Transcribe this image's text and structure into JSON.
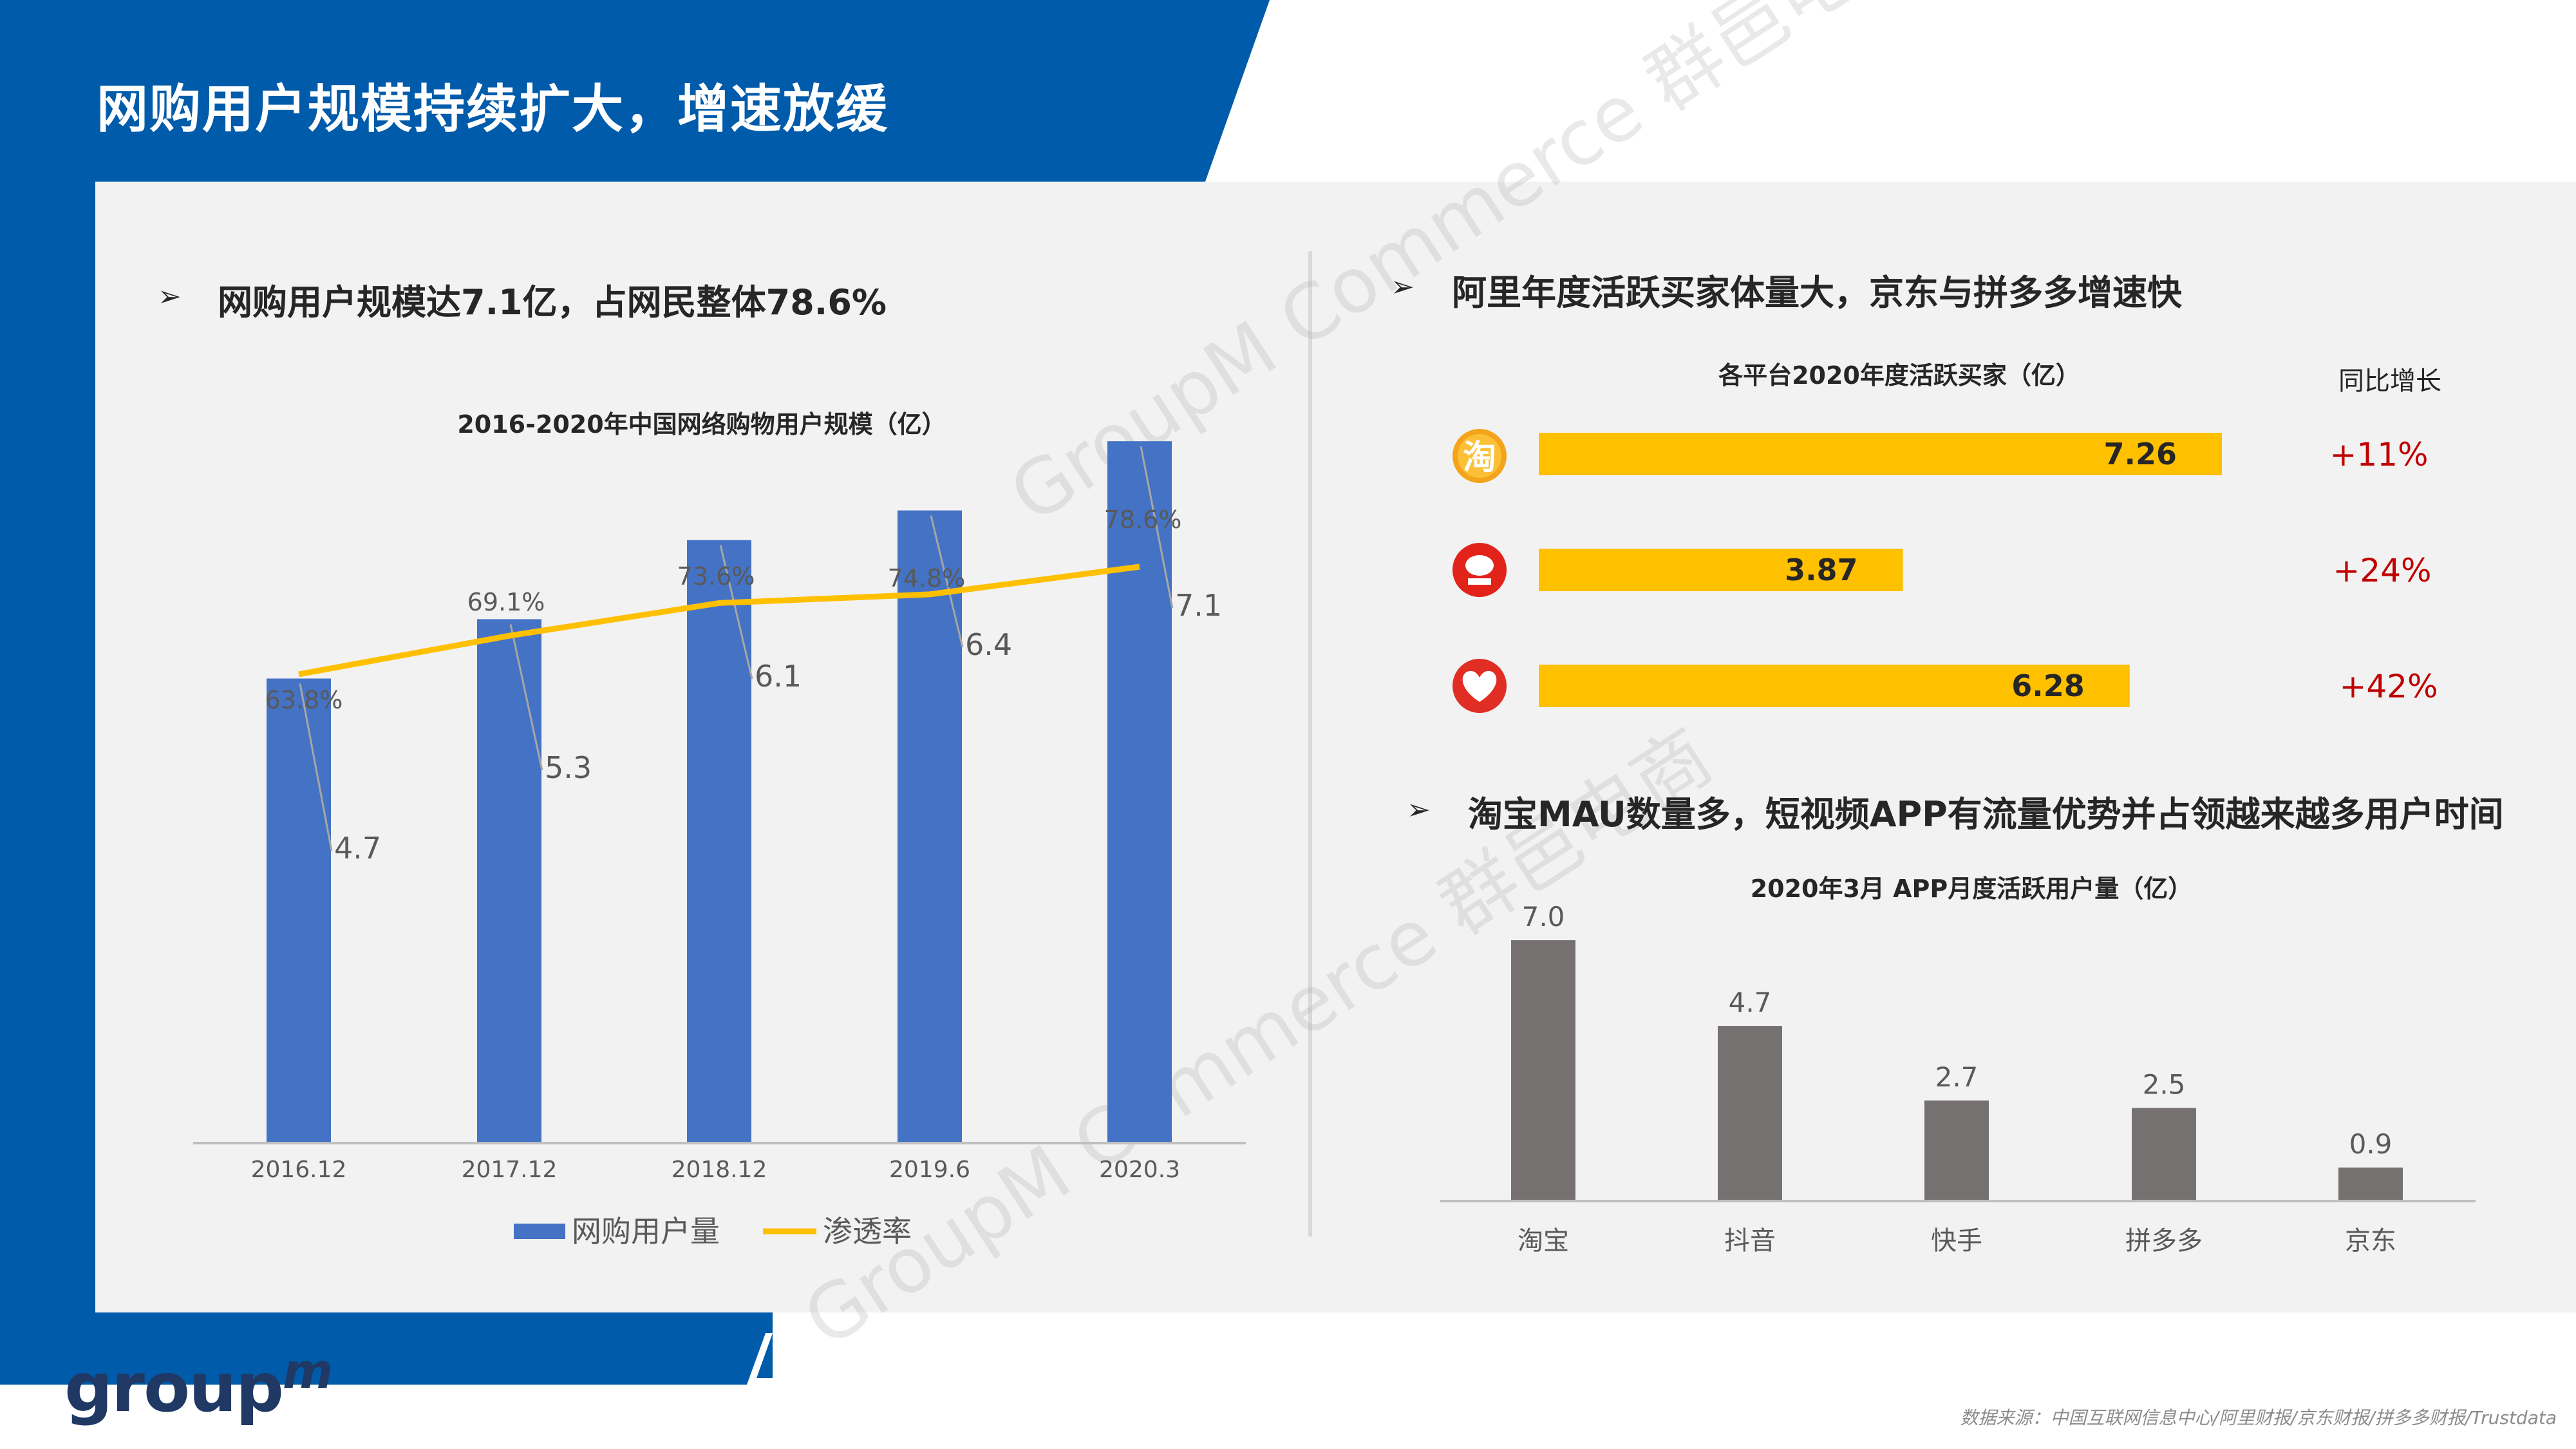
{
  "page": {
    "title": "网购用户规模持续扩大，增速放缓",
    "source": "数据来源：中国互联网信息中心/阿里财报/京东财报/拼多多财报/Trustdata",
    "logo": {
      "text": "group",
      "sup": "m"
    },
    "watermarks": [
      "GroupM Commerce 群邑电商",
      "GroupM Commerce 群邑电商"
    ],
    "colors": {
      "blue": "#005baa",
      "panel": "#f2f2f2",
      "bar_blue": "#4472c4",
      "line_yellow": "#ffc000",
      "bar_gray": "#767171",
      "growth_red": "#c00000"
    }
  },
  "left": {
    "heading": "网购用户规模达7.1亿，占网民整体78.6%",
    "bullet": "➢"
  },
  "right_top": {
    "heading": "阿里年度活跃买家体量大，京东与拼多多增速快",
    "bullet": "➢",
    "growth_header": "同比增长",
    "icons": [
      "taobao-icon",
      "jd-icon",
      "pinduoduo-icon"
    ],
    "growth": [
      "+11%",
      "+24%",
      "+42%"
    ]
  },
  "right_bottom": {
    "heading": "淘宝MAU数量多，短视频APP有流量优势并占领越来越多用户时间",
    "bullet": "➢"
  },
  "chart_data": [
    {
      "type": "bar",
      "title": "2016-2020年中国网络购物用户规模（亿）",
      "categories": [
        "2016.12",
        "2017.12",
        "2018.12",
        "2019.6",
        "2020.3"
      ],
      "series": [
        {
          "name": "网购用户量",
          "type": "bar",
          "values": [
            4.7,
            5.3,
            6.1,
            6.4,
            7.1
          ],
          "labels": [
            "4.7",
            "5.3",
            "6.1",
            "6.4",
            "7.1"
          ]
        },
        {
          "name": "渗透率",
          "type": "line",
          "values": [
            63.8,
            69.1,
            73.6,
            74.8,
            78.6
          ],
          "labels": [
            "63.8%",
            "69.1%",
            "73.6%",
            "74.8%",
            "78.6%"
          ]
        }
      ],
      "legend": "bottom"
    },
    {
      "type": "bar",
      "orientation": "horizontal",
      "title": "各平台2020年度活跃买家（亿）",
      "values": [
        7.26,
        3.87,
        6.28
      ],
      "labels": [
        "7.26",
        "3.87",
        "6.28"
      ]
    },
    {
      "type": "bar",
      "title": "2020年3月 APP月度活跃用户量（亿）",
      "categories": [
        "淘宝",
        "抖音",
        "快手",
        "拼多多",
        "京东"
      ],
      "values": [
        7.0,
        4.7,
        2.7,
        2.5,
        0.9
      ],
      "labels": [
        "7.0",
        "4.7",
        "2.7",
        "2.5",
        "0.9"
      ]
    }
  ]
}
